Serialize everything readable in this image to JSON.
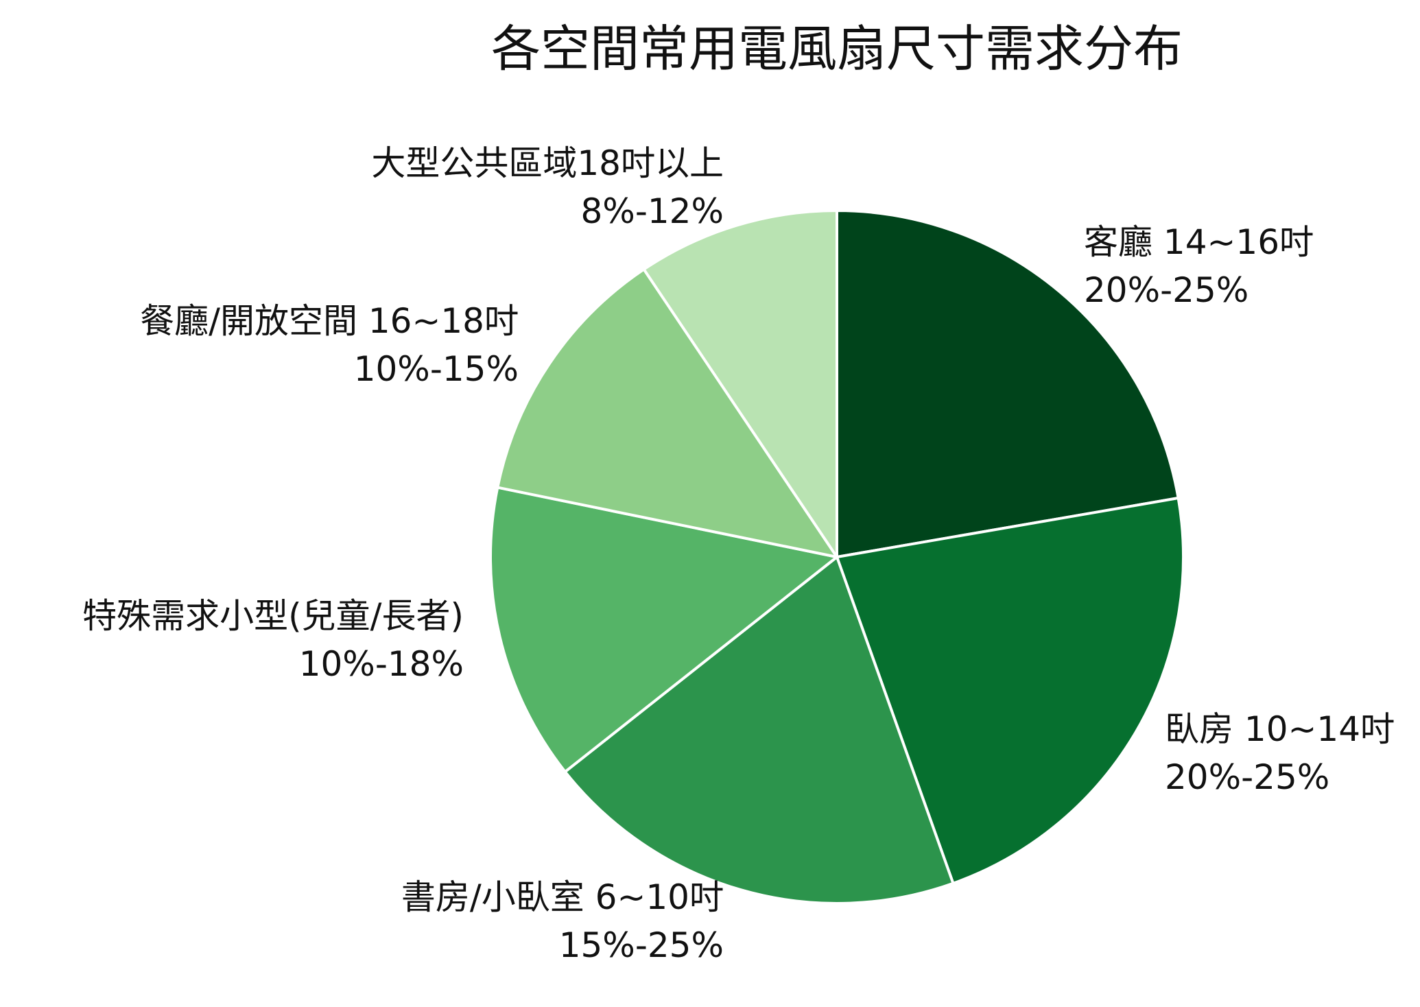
{
  "chart_data": {
    "type": "pie",
    "title": "各空間常用電風扇尺寸需求分布",
    "slices": [
      {
        "name": "客廳 14~16吋",
        "range_label": "20%-25%",
        "value": 22.5,
        "color": "#00441b"
      },
      {
        "name": "臥房 10~14吋",
        "range_label": "20%-25%",
        "value": 22.5,
        "color": "#06702f"
      },
      {
        "name": "書房/小臥室 6~10吋",
        "range_label": "15%-25%",
        "value": 20,
        "color": "#2c944c"
      },
      {
        "name": "特殊需求小型(兒童/長者)",
        "range_label": "10%-18%",
        "value": 14,
        "color": "#55b467"
      },
      {
        "name": "餐廳/開放空間 16~18吋",
        "range_label": "10%-15%",
        "value": 12.5,
        "color": "#8ece88"
      },
      {
        "name": "大型公共區域18吋以上",
        "range_label": "8%-12%",
        "value": 9.5,
        "color": "#b9e3b2"
      }
    ],
    "start_angle": "12 o'clock",
    "direction": "clockwise",
    "slice_border_color": "#ffffff"
  }
}
